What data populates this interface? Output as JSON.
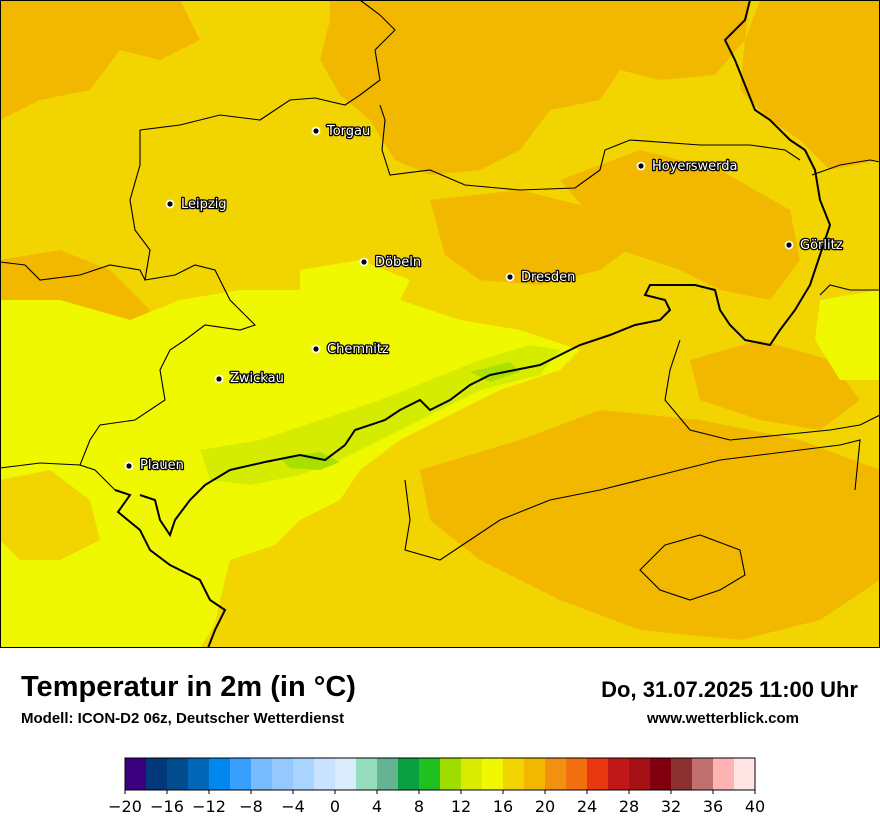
{
  "map": {
    "colors": {
      "t14_16": "#d5ec00",
      "t16_18": "#f0f800",
      "t18_20": "#f2d400",
      "t20_22": "#f2b800",
      "t12_14": "#a8e000",
      "border": "#000000"
    },
    "cities": [
      {
        "name": "Torgau",
        "icon": "city-dot-icon"
      },
      {
        "name": "Leipzig",
        "icon": "city-dot-icon"
      },
      {
        "name": "Hoyerswerda",
        "icon": "city-dot-icon"
      },
      {
        "name": "Görlitz",
        "icon": "city-dot-icon"
      },
      {
        "name": "Döbeln",
        "icon": "city-dot-icon"
      },
      {
        "name": "Dresden",
        "icon": "city-dot-icon"
      },
      {
        "name": "Chemnitz",
        "icon": "city-dot-icon"
      },
      {
        "name": "Zwickau",
        "icon": "city-dot-icon"
      },
      {
        "name": "Plauen",
        "icon": "city-dot-icon"
      }
    ]
  },
  "footer": {
    "title": "Temperatur in 2m (in °C)",
    "model": "Modell: ICON-D2 06z, Deutscher Wetterdienst",
    "datetime": "Do, 31.07.2025 11:00 Uhr",
    "website": "www.wetterblick.com"
  },
  "legend": {
    "min": -20,
    "max": 40,
    "step": 2,
    "colors": [
      "#3a0080",
      "#00387a",
      "#004c8c",
      "#0066b8",
      "#0088f0",
      "#3aa0ff",
      "#78bcff",
      "#94c8ff",
      "#a8d4ff",
      "#c8e2ff",
      "#dcecff",
      "#96dcbe",
      "#64b494",
      "#08a040",
      "#20c020",
      "#a0dc00",
      "#d8ec00",
      "#f0f800",
      "#f2d400",
      "#f2b800",
      "#f29010",
      "#f27010",
      "#e83810",
      "#c01818",
      "#a81018",
      "#800010",
      "#8c3030",
      "#c07070",
      "#ffb4b4",
      "#ffe4e4"
    ],
    "ticks": [
      "−20",
      "−16",
      "−12",
      "−8",
      "−4",
      "0",
      "4",
      "8",
      "12",
      "16",
      "20",
      "24",
      "28",
      "32",
      "36",
      "40"
    ]
  }
}
